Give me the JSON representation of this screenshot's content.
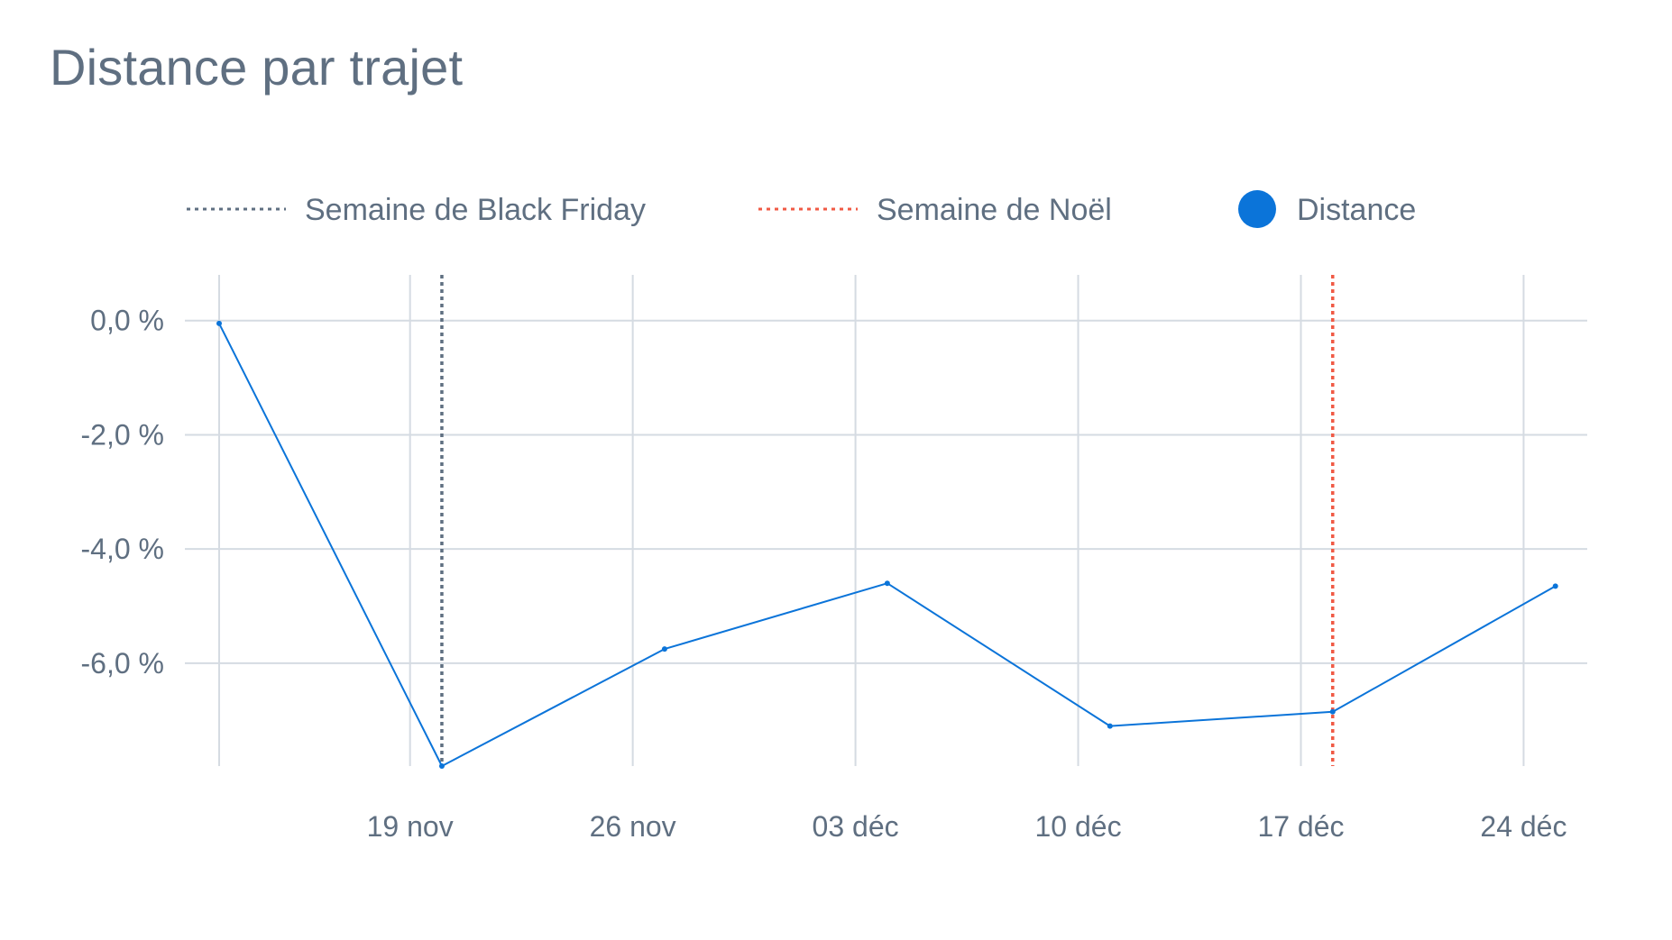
{
  "chart_data": {
    "type": "line",
    "title": "Distance par trajet",
    "x_start": "2023-11-13",
    "x_range": [
      "2023-11-13",
      "2023-12-26"
    ],
    "y_range": [
      -7.8,
      0.8
    ],
    "y_ticks": [
      0,
      -2,
      -4,
      -6
    ],
    "y_tick_labels": [
      "0,0 %",
      "-2,0 %",
      "-4,0 %",
      "-6,0 %"
    ],
    "x_ticks": [
      "2023-11-19",
      "2023-11-26",
      "2023-12-03",
      "2023-12-10",
      "2023-12-17",
      "2023-12-24"
    ],
    "x_tick_labels": [
      "19 nov",
      "26 nov",
      "03 déc",
      "10 déc",
      "17 déc",
      "24 déc"
    ],
    "grid": true,
    "legend": {
      "position": "top-left",
      "items": [
        {
          "label": "Semaine de Black Friday",
          "style": "dotted",
          "color": "#5f6f81"
        },
        {
          "label": "Semaine de Noël",
          "style": "dotted",
          "color": "#f05a45"
        },
        {
          "label": "Distance",
          "style": "dot",
          "color": "#0b74d9"
        }
      ]
    },
    "markers": [
      {
        "name": "Semaine de Black Friday",
        "x": "2023-11-20",
        "color": "#5f6f81"
      },
      {
        "name": "Semaine de Noël",
        "x": "2023-12-18",
        "color": "#f05a45"
      }
    ],
    "series": [
      {
        "name": "Distance",
        "color": "#0b74d9",
        "x": [
          "2023-11-13",
          "2023-11-20",
          "2023-11-27",
          "2023-12-04",
          "2023-12-11",
          "2023-12-18",
          "2023-12-25"
        ],
        "values": [
          -0.05,
          -7.8,
          -5.75,
          -4.6,
          -7.1,
          -6.85,
          -4.65
        ]
      }
    ]
  }
}
